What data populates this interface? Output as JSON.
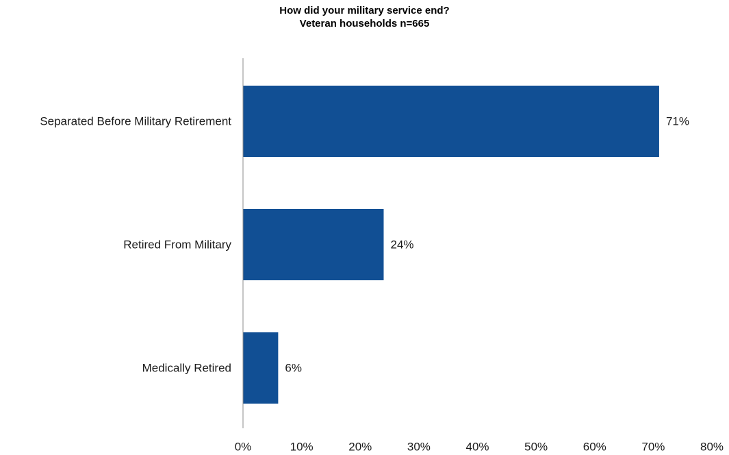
{
  "chart_data": {
    "type": "bar",
    "orientation": "horizontal",
    "title": "How did your military service end?",
    "subtitle": "Veteran households n=665",
    "categories": [
      "Separated Before Military Retirement",
      "Retired From Military",
      "Medically Retired"
    ],
    "values": [
      71,
      24,
      6
    ],
    "data_labels": [
      "71%",
      "24%",
      "6%"
    ],
    "xlim": [
      0,
      80
    ],
    "x_ticks": [
      0,
      10,
      20,
      30,
      40,
      50,
      60,
      70,
      80
    ],
    "x_tick_labels": [
      "0%",
      "10%",
      "20%",
      "30%",
      "40%",
      "50%",
      "60%",
      "70%",
      "80%"
    ],
    "xlabel": "",
    "ylabel": "",
    "grid": false,
    "legend": "none",
    "bar_color": "#114F94"
  }
}
